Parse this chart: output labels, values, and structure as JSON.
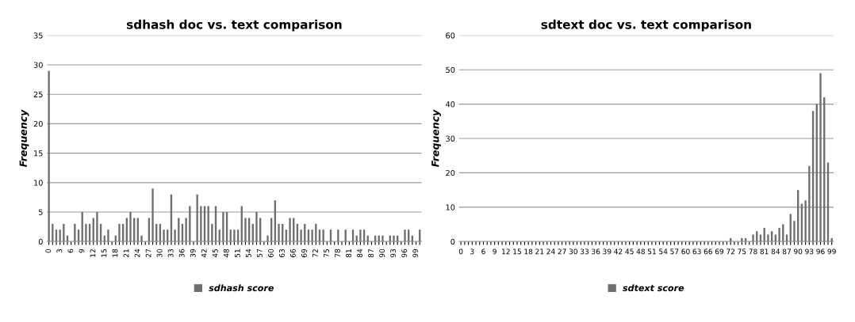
{
  "chart_data": [
    {
      "type": "bar",
      "title": "sdhash doc vs. text comparison",
      "ylabel": "Frequency",
      "categories": [
        "0",
        null,
        null,
        "3",
        null,
        null,
        "6",
        null,
        null,
        "9",
        null,
        null,
        "12",
        null,
        null,
        "15",
        null,
        null,
        "18",
        null,
        null,
        "21",
        null,
        null,
        "24",
        null,
        null,
        "27",
        null,
        null,
        "30",
        null,
        null,
        "33",
        null,
        null,
        "36",
        null,
        null,
        "39",
        null,
        null,
        "42",
        null,
        null,
        "45",
        null,
        null,
        "48",
        null,
        null,
        "51",
        null,
        null,
        "54",
        null,
        null,
        "57",
        null,
        null,
        "60",
        null,
        null,
        "63",
        null,
        null,
        "66",
        null,
        null,
        "69",
        null,
        null,
        "72",
        null,
        null,
        "75",
        null,
        null,
        "78",
        null,
        null,
        "81",
        null,
        null,
        "84",
        null,
        null,
        "87",
        null,
        null,
        "90",
        null,
        null,
        "93",
        null,
        null,
        "96",
        null,
        null,
        "99",
        null
      ],
      "series": [
        {
          "name": "sdhash score",
          "color": "#6e6e6e",
          "values": [
            29,
            3,
            2,
            2,
            3,
            1,
            0,
            3,
            2,
            5,
            3,
            3,
            4,
            5,
            3,
            1,
            2,
            0,
            1,
            3,
            3,
            4,
            5,
            4,
            4,
            1,
            0,
            4,
            9,
            3,
            3,
            2,
            2,
            8,
            2,
            4,
            3,
            4,
            6,
            0,
            8,
            6,
            6,
            6,
            3,
            6,
            2,
            5,
            5,
            2,
            2,
            2,
            6,
            4,
            4,
            3,
            5,
            4,
            0,
            1,
            4,
            7,
            3,
            3,
            2,
            4,
            4,
            3,
            2,
            3,
            2,
            2,
            3,
            2,
            2,
            0,
            2,
            0,
            2,
            0,
            2,
            0,
            2,
            1,
            2,
            2,
            1,
            0,
            1,
            1,
            1,
            0,
            1,
            1,
            1,
            0,
            2,
            2,
            1,
            0,
            2
          ]
        }
      ],
      "ylim": [
        0,
        35
      ],
      "yticks": [
        0,
        5,
        10,
        15,
        20,
        25,
        30,
        35
      ],
      "grid": "y",
      "legend": "bottom"
    },
    {
      "type": "bar",
      "title": "sdtext doc vs. text comparison",
      "ylabel": "Frequency",
      "categories": [
        "0",
        null,
        null,
        "3",
        null,
        null,
        "6",
        null,
        null,
        "9",
        null,
        null,
        "12",
        null,
        null,
        "15",
        null,
        null,
        "18",
        null,
        null,
        "21",
        null,
        null,
        "24",
        null,
        null,
        "27",
        null,
        null,
        "30",
        null,
        null,
        "33",
        null,
        null,
        "36",
        null,
        null,
        "39",
        null,
        null,
        "42",
        null,
        null,
        "45",
        null,
        null,
        "48",
        null,
        null,
        "51",
        null,
        null,
        "54",
        null,
        null,
        "57",
        null,
        null,
        "60",
        null,
        null,
        "63",
        null,
        null,
        "66",
        null,
        null,
        "69",
        null,
        null,
        "72",
        null,
        null,
        "75",
        null,
        null,
        "78",
        null,
        null,
        "81",
        null,
        null,
        "84",
        null,
        null,
        "87",
        null,
        null,
        "90",
        null,
        null,
        "93",
        null,
        null,
        "96",
        null,
        null,
        "99"
      ],
      "series": [
        {
          "name": "sdtext score",
          "color": "#6e6e6e",
          "values": [
            0,
            0,
            0,
            0,
            0,
            0,
            0,
            0,
            0,
            0,
            0,
            0,
            0,
            0,
            0,
            0,
            0,
            0,
            0,
            0,
            0,
            0,
            0,
            0,
            0,
            0,
            0,
            0,
            0,
            0,
            0,
            0,
            0,
            0,
            0,
            0,
            0,
            0,
            0,
            0,
            0,
            0,
            0,
            0,
            0,
            0,
            0,
            0,
            0,
            0,
            0,
            0,
            0,
            0,
            0,
            0,
            0,
            0,
            0,
            0,
            0,
            0,
            0,
            0,
            0,
            0,
            0,
            0,
            0,
            0,
            0,
            0,
            1,
            0,
            0,
            1,
            1,
            0,
            2,
            3,
            2,
            4,
            2,
            3,
            2,
            4,
            5,
            2,
            8,
            6,
            15,
            11,
            12,
            22,
            38,
            40,
            49,
            42,
            23,
            1
          ]
        }
      ],
      "ylim": [
        0,
        60
      ],
      "yticks": [
        0,
        10,
        20,
        30,
        40,
        50,
        60
      ],
      "grid": "y",
      "legend": "bottom"
    }
  ]
}
